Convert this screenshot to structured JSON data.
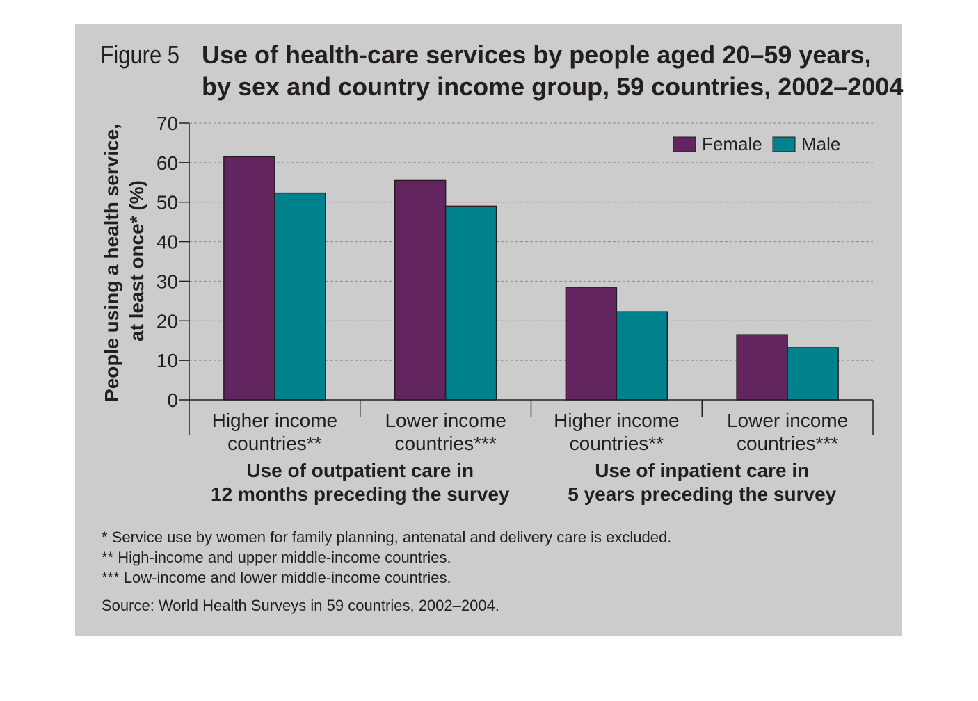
{
  "figure": {
    "label": "Figure 5",
    "title_line1": "Use of health-care services by people aged 20–59 years,",
    "title_line2": "by sex and country income group, 59 countries, 2002–2004"
  },
  "chart_data": {
    "type": "bar",
    "categories": [
      "Higher income countries**",
      "Lower income countries***",
      "Higher income countries**",
      "Lower income countries***"
    ],
    "category_lines": [
      [
        "Higher income",
        "countries**"
      ],
      [
        "Lower income",
        "countries***"
      ],
      [
        "Higher income",
        "countries**"
      ],
      [
        "Lower income",
        "countries***"
      ]
    ],
    "groups": [
      {
        "lines": [
          "Use of outpatient care in",
          "12 months preceding the survey"
        ],
        "categories": [
          0,
          1
        ]
      },
      {
        "lines": [
          "Use of inpatient care in",
          "5 years preceding the survey"
        ],
        "categories": [
          2,
          3
        ]
      }
    ],
    "series": [
      {
        "name": "Female",
        "color": "#62255f",
        "values": [
          61.5,
          55.5,
          28.5,
          16.5
        ]
      },
      {
        "name": "Male",
        "color": "#00818e",
        "values": [
          52.3,
          49.0,
          22.3,
          13.2
        ]
      }
    ],
    "ylabel_line1": "People using a health service,",
    "ylabel_line2": "at least once* (%)",
    "xlabel": "",
    "ylim": [
      0,
      70
    ],
    "yticks": [
      0,
      10,
      20,
      30,
      40,
      50,
      60,
      70
    ],
    "grid": true,
    "legend_position": "top-right"
  },
  "notes": [
    "* Service use by women for family planning, antenatal and delivery care is excluded.",
    "** High-income and upper middle-income countries.",
    "*** Low-income and lower middle-income countries."
  ],
  "source": "Source: World Health Surveys in 59 countries, 2002–2004."
}
